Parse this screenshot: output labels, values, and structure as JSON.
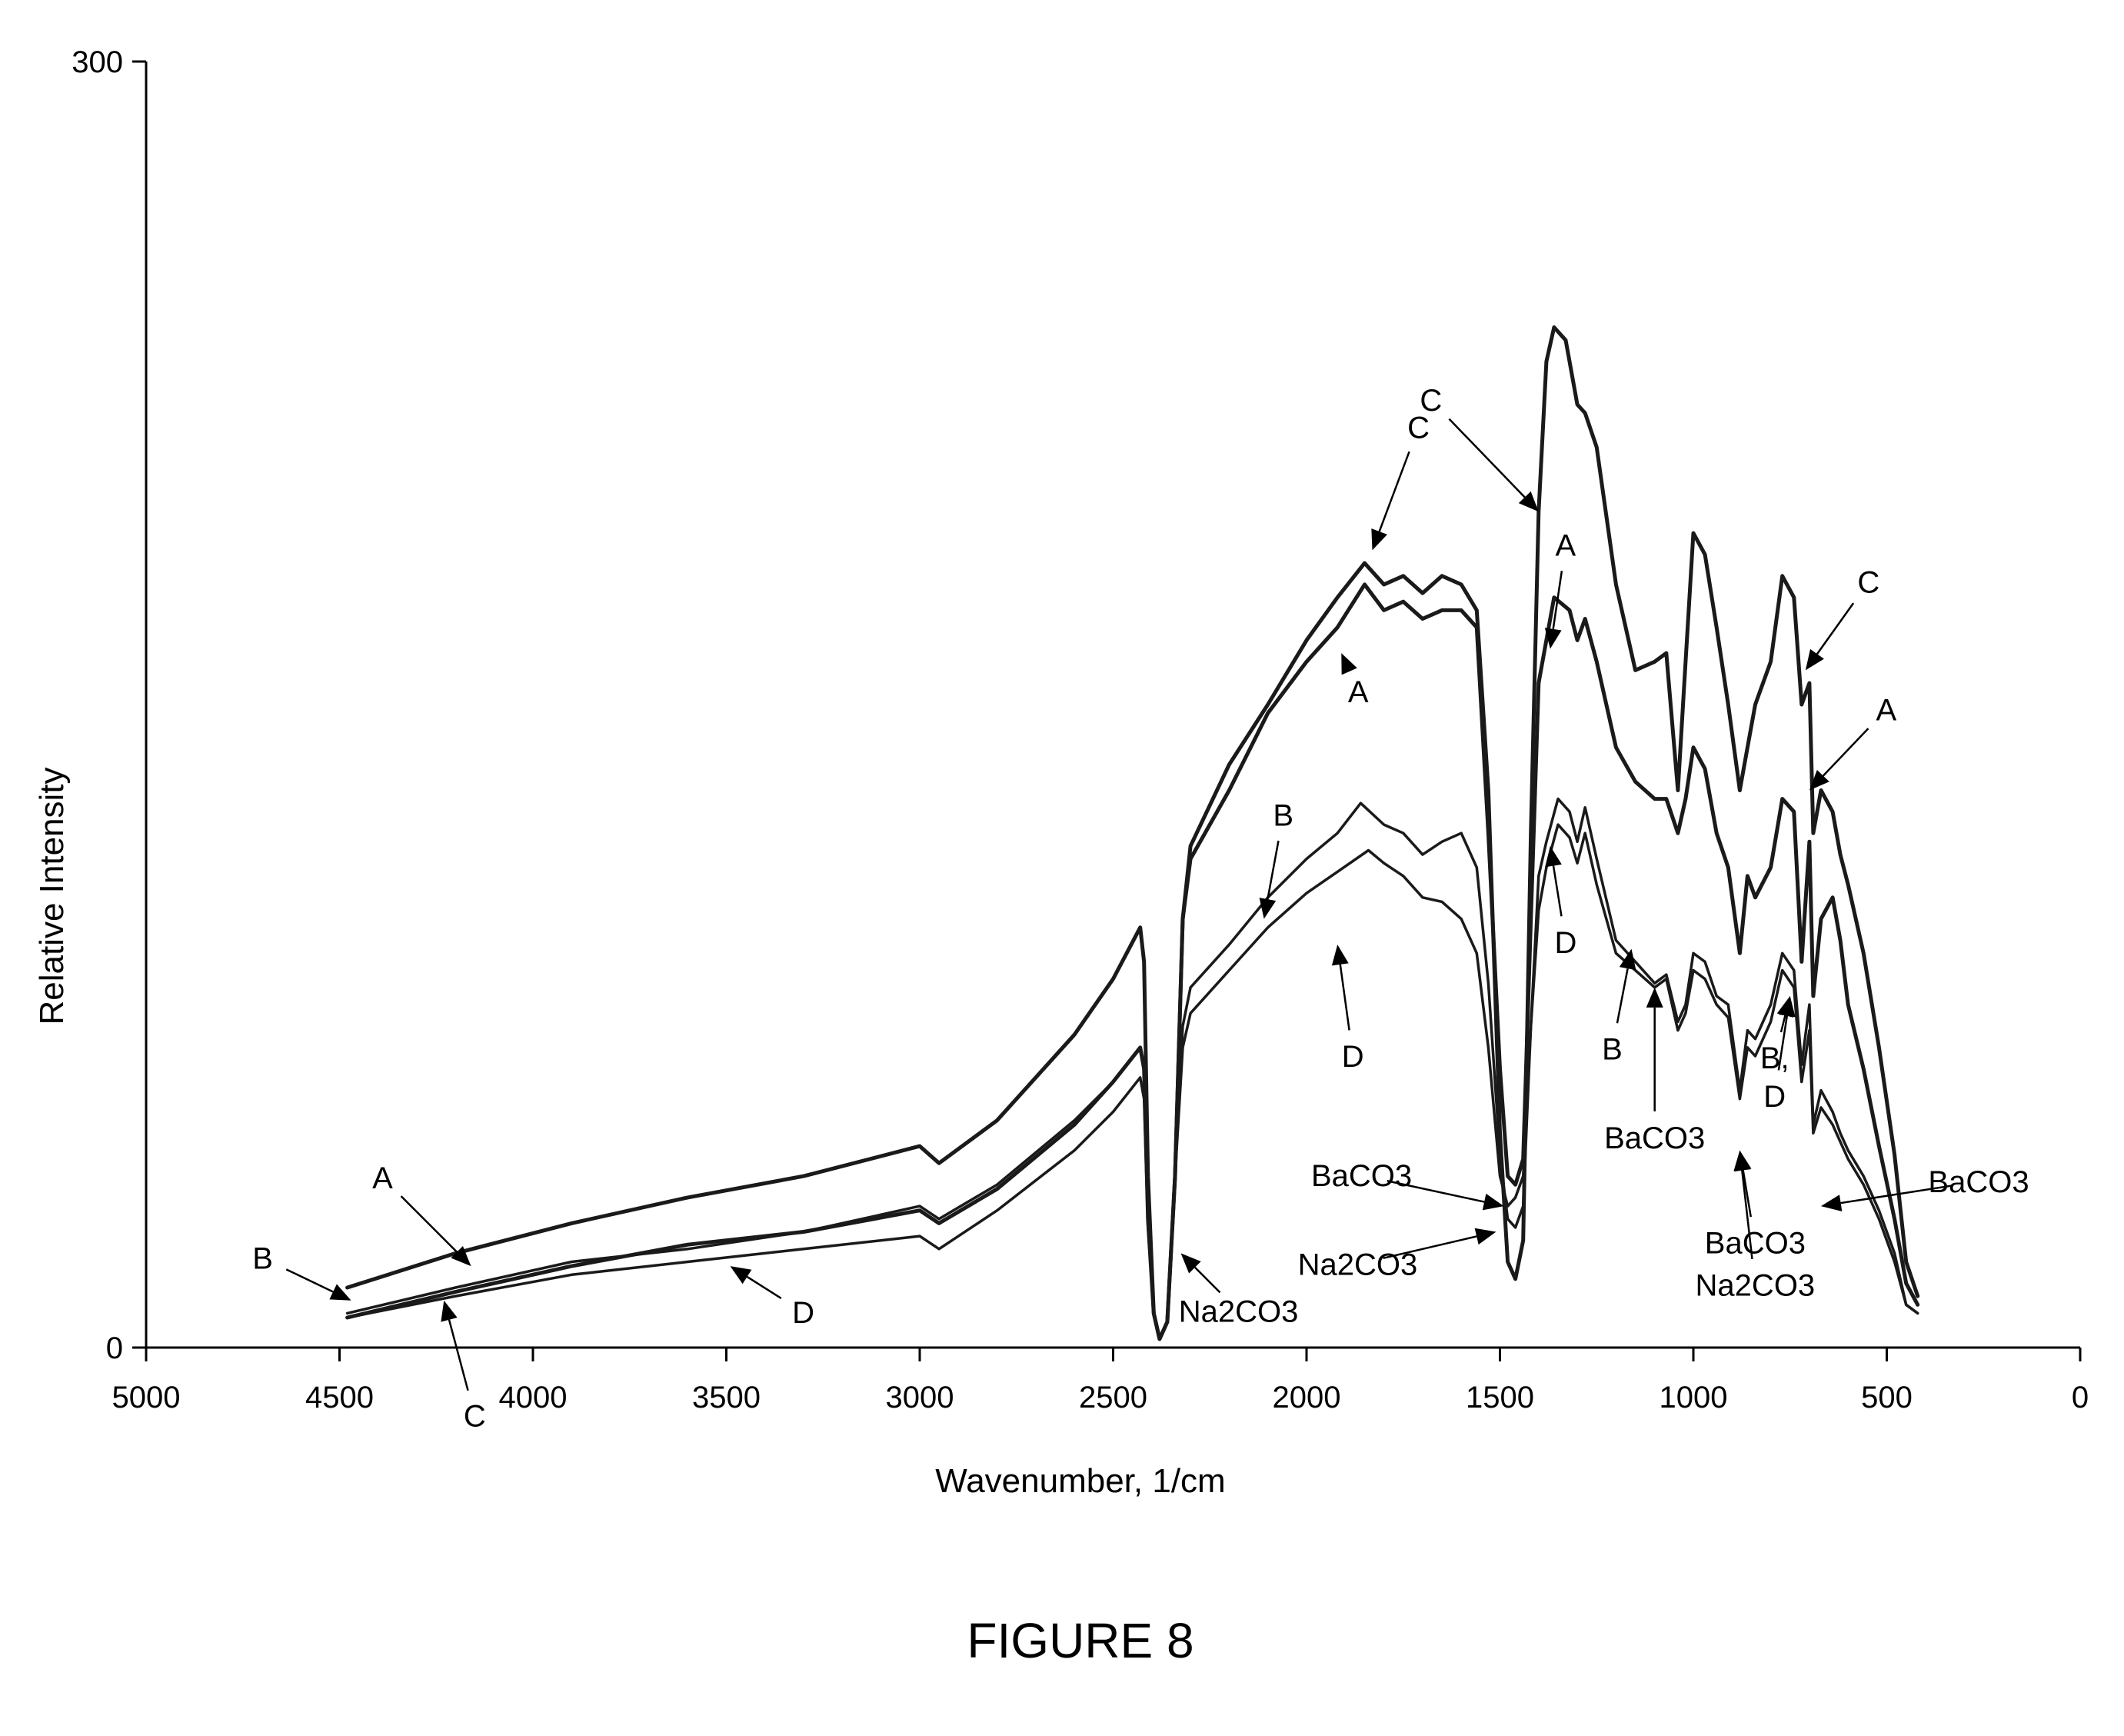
{
  "figure_caption": "FIGURE 8",
  "chart_data": {
    "type": "line",
    "title": "",
    "xlabel": "Wavenumber, 1/cm",
    "ylabel": "Relative Intensity",
    "xlim": [
      5000,
      0
    ],
    "ylim": [
      0,
      300
    ],
    "x_ticks": [
      "5000",
      "4500",
      "4000",
      "3500",
      "3000",
      "2500",
      "2000",
      "1500",
      "1000",
      "500",
      "0"
    ],
    "y_ticks": [
      "300",
      "0"
    ],
    "grid": false,
    "legend": "none",
    "series": [
      {
        "name": "A",
        "points": [
          [
            4480,
            14
          ],
          [
            4200,
            22
          ],
          [
            3900,
            29
          ],
          [
            3600,
            35
          ],
          [
            3300,
            40
          ],
          [
            3000,
            47
          ],
          [
            2950,
            43
          ],
          [
            2800,
            53
          ],
          [
            2600,
            73
          ],
          [
            2500,
            86
          ],
          [
            2430,
            98
          ],
          [
            2420,
            90
          ],
          [
            2410,
            40
          ],
          [
            2395,
            8
          ],
          [
            2380,
            2
          ],
          [
            2360,
            6
          ],
          [
            2340,
            40
          ],
          [
            2320,
            100
          ],
          [
            2300,
            114
          ],
          [
            2200,
            130
          ],
          [
            2100,
            148
          ],
          [
            2000,
            160
          ],
          [
            1920,
            168
          ],
          [
            1850,
            178
          ],
          [
            1800,
            172
          ],
          [
            1750,
            174
          ],
          [
            1700,
            170
          ],
          [
            1650,
            172
          ],
          [
            1600,
            172
          ],
          [
            1560,
            168
          ],
          [
            1530,
            120
          ],
          [
            1500,
            65
          ],
          [
            1480,
            40
          ],
          [
            1460,
            38
          ],
          [
            1440,
            44
          ],
          [
            1420,
            100
          ],
          [
            1400,
            155
          ],
          [
            1360,
            175
          ],
          [
            1320,
            172
          ],
          [
            1300,
            165
          ],
          [
            1280,
            170
          ],
          [
            1250,
            160
          ],
          [
            1200,
            140
          ],
          [
            1150,
            132
          ],
          [
            1100,
            128
          ],
          [
            1070,
            128
          ],
          [
            1040,
            120
          ],
          [
            1020,
            128
          ],
          [
            1000,
            140
          ],
          [
            970,
            135
          ],
          [
            940,
            120
          ],
          [
            910,
            112
          ],
          [
            880,
            92
          ],
          [
            860,
            110
          ],
          [
            840,
            105
          ],
          [
            800,
            112
          ],
          [
            770,
            128
          ],
          [
            740,
            125
          ],
          [
            720,
            90
          ],
          [
            700,
            118
          ],
          [
            690,
            82
          ],
          [
            670,
            100
          ],
          [
            640,
            105
          ],
          [
            620,
            95
          ],
          [
            600,
            80
          ],
          [
            560,
            65
          ],
          [
            520,
            47
          ],
          [
            480,
            30
          ],
          [
            450,
            15
          ],
          [
            420,
            10
          ]
        ]
      },
      {
        "name": "B",
        "points": [
          [
            4480,
            8
          ],
          [
            4200,
            14
          ],
          [
            3900,
            20
          ],
          [
            3600,
            23
          ],
          [
            3300,
            27
          ],
          [
            3000,
            33
          ],
          [
            2950,
            30
          ],
          [
            2800,
            38
          ],
          [
            2600,
            53
          ],
          [
            2500,
            62
          ],
          [
            2430,
            70
          ],
          [
            2420,
            65
          ],
          [
            2410,
            30
          ],
          [
            2395,
            8
          ],
          [
            2380,
            2
          ],
          [
            2360,
            6
          ],
          [
            2340,
            40
          ],
          [
            2320,
            75
          ],
          [
            2300,
            84
          ],
          [
            2200,
            94
          ],
          [
            2100,
            105
          ],
          [
            2000,
            114
          ],
          [
            1920,
            120
          ],
          [
            1860,
            127
          ],
          [
            1800,
            122
          ],
          [
            1750,
            120
          ],
          [
            1700,
            115
          ],
          [
            1650,
            118
          ],
          [
            1600,
            120
          ],
          [
            1560,
            112
          ],
          [
            1530,
            85
          ],
          [
            1500,
            45
          ],
          [
            1480,
            30
          ],
          [
            1460,
            28
          ],
          [
            1440,
            33
          ],
          [
            1420,
            75
          ],
          [
            1400,
            110
          ],
          [
            1380,
            118
          ],
          [
            1350,
            128
          ],
          [
            1320,
            125
          ],
          [
            1300,
            118
          ],
          [
            1280,
            126
          ],
          [
            1250,
            114
          ],
          [
            1200,
            95
          ],
          [
            1150,
            90
          ],
          [
            1100,
            85
          ],
          [
            1070,
            87
          ],
          [
            1040,
            76
          ],
          [
            1020,
            80
          ],
          [
            1000,
            92
          ],
          [
            970,
            90
          ],
          [
            940,
            82
          ],
          [
            910,
            80
          ],
          [
            880,
            60
          ],
          [
            860,
            74
          ],
          [
            840,
            72
          ],
          [
            800,
            80
          ],
          [
            770,
            92
          ],
          [
            740,
            88
          ],
          [
            720,
            66
          ],
          [
            700,
            80
          ],
          [
            690,
            52
          ],
          [
            670,
            60
          ],
          [
            640,
            55
          ],
          [
            620,
            50
          ],
          [
            600,
            46
          ],
          [
            560,
            40
          ],
          [
            520,
            32
          ],
          [
            480,
            22
          ],
          [
            450,
            10
          ],
          [
            420,
            8
          ]
        ]
      },
      {
        "name": "C",
        "points": [
          [
            4480,
            7
          ],
          [
            4200,
            13
          ],
          [
            3900,
            19
          ],
          [
            3600,
            24
          ],
          [
            3300,
            27
          ],
          [
            3000,
            32
          ],
          [
            2950,
            29
          ],
          [
            2800,
            37
          ],
          [
            2600,
            52
          ],
          [
            2500,
            62
          ],
          [
            2430,
            70
          ],
          [
            2420,
            65
          ],
          [
            2410,
            30
          ],
          [
            2395,
            8
          ],
          [
            2380,
            2
          ],
          [
            2360,
            6
          ],
          [
            2340,
            40
          ],
          [
            2320,
            100
          ],
          [
            2300,
            117
          ],
          [
            2200,
            136
          ],
          [
            2100,
            150
          ],
          [
            2000,
            165
          ],
          [
            1920,
            175
          ],
          [
            1850,
            183
          ],
          [
            1800,
            178
          ],
          [
            1750,
            180
          ],
          [
            1700,
            176
          ],
          [
            1650,
            180
          ],
          [
            1600,
            178
          ],
          [
            1560,
            172
          ],
          [
            1530,
            130
          ],
          [
            1500,
            50
          ],
          [
            1480,
            20
          ],
          [
            1460,
            16
          ],
          [
            1440,
            25
          ],
          [
            1420,
            120
          ],
          [
            1400,
            195
          ],
          [
            1380,
            230
          ],
          [
            1360,
            238
          ],
          [
            1330,
            235
          ],
          [
            1300,
            220
          ],
          [
            1280,
            218
          ],
          [
            1250,
            210
          ],
          [
            1200,
            178
          ],
          [
            1150,
            158
          ],
          [
            1100,
            160
          ],
          [
            1070,
            162
          ],
          [
            1040,
            130
          ],
          [
            1020,
            160
          ],
          [
            1000,
            190
          ],
          [
            970,
            185
          ],
          [
            940,
            168
          ],
          [
            910,
            150
          ],
          [
            880,
            130
          ],
          [
            860,
            140
          ],
          [
            840,
            150
          ],
          [
            800,
            160
          ],
          [
            770,
            180
          ],
          [
            740,
            175
          ],
          [
            720,
            150
          ],
          [
            700,
            155
          ],
          [
            690,
            120
          ],
          [
            670,
            130
          ],
          [
            640,
            125
          ],
          [
            620,
            115
          ],
          [
            600,
            108
          ],
          [
            560,
            92
          ],
          [
            520,
            70
          ],
          [
            480,
            45
          ],
          [
            450,
            20
          ],
          [
            420,
            12
          ]
        ]
      },
      {
        "name": "D",
        "points": [
          [
            4480,
            7
          ],
          [
            4200,
            12
          ],
          [
            3900,
            17
          ],
          [
            3600,
            20
          ],
          [
            3300,
            23
          ],
          [
            3000,
            26
          ],
          [
            2950,
            23
          ],
          [
            2800,
            32
          ],
          [
            2600,
            46
          ],
          [
            2500,
            55
          ],
          [
            2430,
            63
          ],
          [
            2420,
            58
          ],
          [
            2410,
            28
          ],
          [
            2395,
            8
          ],
          [
            2380,
            2
          ],
          [
            2360,
            6
          ],
          [
            2340,
            40
          ],
          [
            2320,
            70
          ],
          [
            2300,
            78
          ],
          [
            2200,
            88
          ],
          [
            2100,
            98
          ],
          [
            2000,
            106
          ],
          [
            1920,
            111
          ],
          [
            1840,
            116
          ],
          [
            1800,
            113
          ],
          [
            1750,
            110
          ],
          [
            1700,
            105
          ],
          [
            1650,
            104
          ],
          [
            1600,
            100
          ],
          [
            1560,
            92
          ],
          [
            1530,
            70
          ],
          [
            1500,
            40
          ],
          [
            1480,
            33
          ],
          [
            1460,
            35
          ],
          [
            1440,
            40
          ],
          [
            1420,
            75
          ],
          [
            1400,
            102
          ],
          [
            1380,
            112
          ],
          [
            1350,
            122
          ],
          [
            1320,
            119
          ],
          [
            1300,
            113
          ],
          [
            1280,
            120
          ],
          [
            1250,
            108
          ],
          [
            1200,
            92
          ],
          [
            1150,
            88
          ],
          [
            1100,
            84
          ],
          [
            1070,
            86
          ],
          [
            1040,
            74
          ],
          [
            1020,
            78
          ],
          [
            1000,
            88
          ],
          [
            970,
            86
          ],
          [
            940,
            80
          ],
          [
            910,
            77
          ],
          [
            880,
            58
          ],
          [
            860,
            70
          ],
          [
            840,
            68
          ],
          [
            800,
            76
          ],
          [
            770,
            88
          ],
          [
            740,
            84
          ],
          [
            720,
            62
          ],
          [
            700,
            74
          ],
          [
            690,
            50
          ],
          [
            670,
            56
          ],
          [
            640,
            52
          ],
          [
            620,
            48
          ],
          [
            600,
            44
          ],
          [
            560,
            38
          ],
          [
            520,
            30
          ],
          [
            480,
            20
          ],
          [
            450,
            10
          ],
          [
            420,
            8
          ]
        ]
      }
    ],
    "annotations": [
      {
        "text": "A",
        "x": 4160,
        "y": 19
      },
      {
        "text": "B",
        "x": 4470,
        "y": 11
      },
      {
        "text": "C",
        "x": 4230,
        "y": 11
      },
      {
        "text": "D",
        "x": 3490,
        "y": 19
      },
      {
        "text": "C",
        "x": 1830,
        "y": 186
      },
      {
        "text": "C",
        "x": 1400,
        "y": 195
      },
      {
        "text": "A",
        "x": 1910,
        "y": 162
      },
      {
        "text": "B",
        "x": 2110,
        "y": 100
      },
      {
        "text": "D",
        "x": 1920,
        "y": 94
      },
      {
        "text": "A",
        "x": 1370,
        "y": 163
      },
      {
        "text": "D",
        "x": 1370,
        "y": 117
      },
      {
        "text": "B",
        "x": 1160,
        "y": 93
      },
      {
        "text": "BaCO3",
        "x": 1100,
        "y": 84
      },
      {
        "text": "C",
        "x": 710,
        "y": 158
      },
      {
        "text": "A",
        "x": 700,
        "y": 130
      },
      {
        "text": "B, ",
        "x": 750,
        "y": 82
      },
      {
        "text": "D",
        "x": 750,
        "y": 82
      },
      {
        "text": "BaCO3",
        "x": 1490,
        "y": 33
      },
      {
        "text": "BaCO3",
        "x": 880,
        "y": 46
      },
      {
        "text": "Na2CO3",
        "x": 880,
        "y": 46
      },
      {
        "text": "BaCO3",
        "x": 670,
        "y": 33
      },
      {
        "text": "Na2CO3",
        "x": 2325,
        "y": 22
      },
      {
        "text": "Na2CO3",
        "x": 1510,
        "y": 27
      }
    ]
  }
}
